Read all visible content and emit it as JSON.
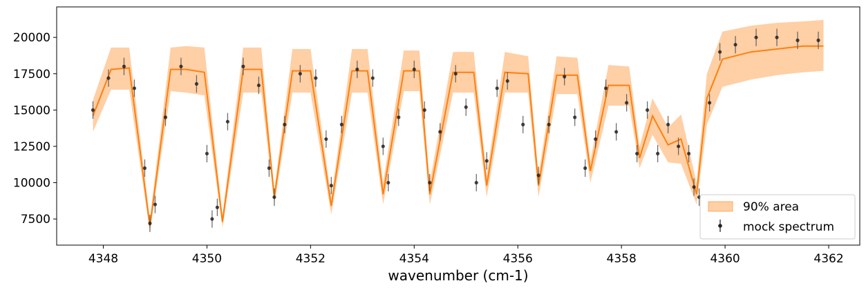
{
  "chart_data": {
    "type": "scatter",
    "title": "",
    "xlabel": "wavenumber (cm-1)",
    "ylabel": "",
    "xlim": [
      4347.1,
      4362.6
    ],
    "ylim": [
      5700,
      22100
    ],
    "x_ticks": [
      4348,
      4350,
      4352,
      4354,
      4356,
      4358,
      4360,
      4362
    ],
    "x_tick_labels": [
      "4348",
      "4350",
      "4352",
      "4354",
      "4356",
      "4358",
      "4360",
      "4362"
    ],
    "y_ticks": [
      7500,
      10000,
      12500,
      15000,
      17500,
      20000
    ],
    "y_tick_labels": [
      "7500",
      "10000",
      "12500",
      "15000",
      "17500",
      "20000"
    ],
    "grid": false,
    "legend_position": "lower-right",
    "legend": [
      {
        "label": "90% area",
        "kind": "band",
        "color": "#ffbb7f"
      },
      {
        "label": "mock spectrum",
        "kind": "errorbar",
        "color": "#222222"
      }
    ],
    "colors": {
      "band_fill": "#ffbb7f",
      "model_line": "#ff7f0e",
      "points": "#1a1a1a"
    },
    "series": [
      {
        "name": "90% area",
        "kind": "band",
        "x": [
          4347.8,
          4348.15,
          4348.5,
          4348.9,
          4349.3,
          4349.6,
          4349.95,
          4350.3,
          4350.7,
          4351.05,
          4351.3,
          4351.65,
          4352.0,
          4352.4,
          4352.8,
          4353.1,
          4353.4,
          4353.8,
          4354.1,
          4354.3,
          4354.75,
          4355.15,
          4355.4,
          4355.75,
          4356.2,
          4356.4,
          4356.75,
          4357.15,
          4357.4,
          4357.75,
          4358.15,
          4358.35,
          4358.6,
          4358.9,
          4359.15,
          4359.45,
          4359.65,
          4359.95,
          4360.5,
          4361.0,
          4361.5,
          4361.9
        ],
        "lower": [
          13500,
          16400,
          16400,
          6600,
          16300,
          16200,
          16000,
          6900,
          16200,
          16200,
          8500,
          16200,
          16200,
          7800,
          16200,
          16200,
          8500,
          16300,
          16300,
          8500,
          16200,
          16200,
          9000,
          16200,
          16200,
          9000,
          16100,
          16100,
          10000,
          15300,
          15300,
          11000,
          13300,
          11400,
          11300,
          8500,
          14000,
          16600,
          17100,
          17400,
          17600,
          17700
        ],
        "upper": [
          15700,
          19300,
          19300,
          7500,
          19300,
          19400,
          19300,
          7800,
          19300,
          19300,
          9500,
          19200,
          19200,
          9000,
          19200,
          19200,
          10000,
          19100,
          19100,
          10000,
          19000,
          19000,
          10500,
          19000,
          18700,
          10500,
          18700,
          18600,
          11500,
          18100,
          18000,
          12500,
          15800,
          13800,
          14700,
          10000,
          17500,
          20400,
          20800,
          21000,
          21100,
          21200
        ]
      },
      {
        "name": "mock spectrum",
        "kind": "errorbar",
        "x": [
          4347.8,
          4348.1,
          4348.4,
          4348.6,
          4348.8,
          4348.9,
          4349.0,
          4349.2,
          4349.5,
          4349.8,
          4350.0,
          4350.1,
          4350.2,
          4350.4,
          4350.7,
          4351.0,
          4351.2,
          4351.3,
          4351.5,
          4351.8,
          4352.1,
          4352.3,
          4352.4,
          4352.6,
          4352.9,
          4353.2,
          4353.4,
          4353.5,
          4353.7,
          4354.0,
          4354.2,
          4354.3,
          4354.5,
          4354.8,
          4355.0,
          4355.2,
          4355.4,
          4355.6,
          4355.8,
          4356.1,
          4356.4,
          4356.6,
          4356.9,
          4357.1,
          4357.3,
          4357.5,
          4357.7,
          4357.9,
          4358.1,
          4358.3,
          4358.5,
          4358.7,
          4358.9,
          4359.1,
          4359.3,
          4359.4,
          4359.5,
          4359.7,
          4359.9,
          4360.2,
          4360.6,
          4361.0,
          4361.4,
          4361.8
        ],
        "y": [
          15000,
          17200,
          18000,
          16500,
          11000,
          7200,
          8500,
          14500,
          18000,
          16800,
          12000,
          7500,
          8300,
          14200,
          18000,
          16700,
          11000,
          9000,
          14000,
          17500,
          17200,
          13000,
          9800,
          14000,
          17800,
          17200,
          12500,
          10000,
          14500,
          17800,
          15000,
          10000,
          13500,
          17500,
          15200,
          10000,
          11500,
          16500,
          17000,
          14000,
          10500,
          14000,
          17300,
          14500,
          11000,
          13000,
          16500,
          13500,
          15500,
          12000,
          15000,
          12000,
          14000,
          12500,
          12000,
          9700,
          9000,
          15500,
          19000,
          19500,
          20000,
          20000,
          19800,
          19800
        ],
        "yerr_typical": 600
      },
      {
        "name": "model",
        "kind": "line",
        "note_source": "orange median curve inside band",
        "x": [
          4347.8,
          4348.15,
          4348.5,
          4348.9,
          4349.3,
          4349.6,
          4349.95,
          4350.3,
          4350.7,
          4351.05,
          4351.3,
          4351.65,
          4352.0,
          4352.4,
          4352.8,
          4353.1,
          4353.4,
          4353.8,
          4354.1,
          4354.3,
          4354.75,
          4355.15,
          4355.4,
          4355.75,
          4356.2,
          4356.4,
          4356.75,
          4357.15,
          4357.4,
          4357.75,
          4358.15,
          4358.35,
          4358.6,
          4358.9,
          4359.15,
          4359.45,
          4359.65,
          4359.95,
          4360.5,
          4361.0,
          4361.5,
          4361.9
        ],
        "y": [
          14600,
          17800,
          17900,
          7000,
          17800,
          17800,
          17600,
          7300,
          17800,
          17800,
          9000,
          17700,
          17700,
          8400,
          17700,
          17700,
          9200,
          17700,
          17700,
          9200,
          17600,
          17600,
          9800,
          17600,
          17500,
          9800,
          17400,
          17400,
          10800,
          16700,
          16700,
          11700,
          14600,
          12600,
          13000,
          9200,
          15800,
          18500,
          19000,
          19200,
          19400,
          19400
        ]
      }
    ]
  }
}
